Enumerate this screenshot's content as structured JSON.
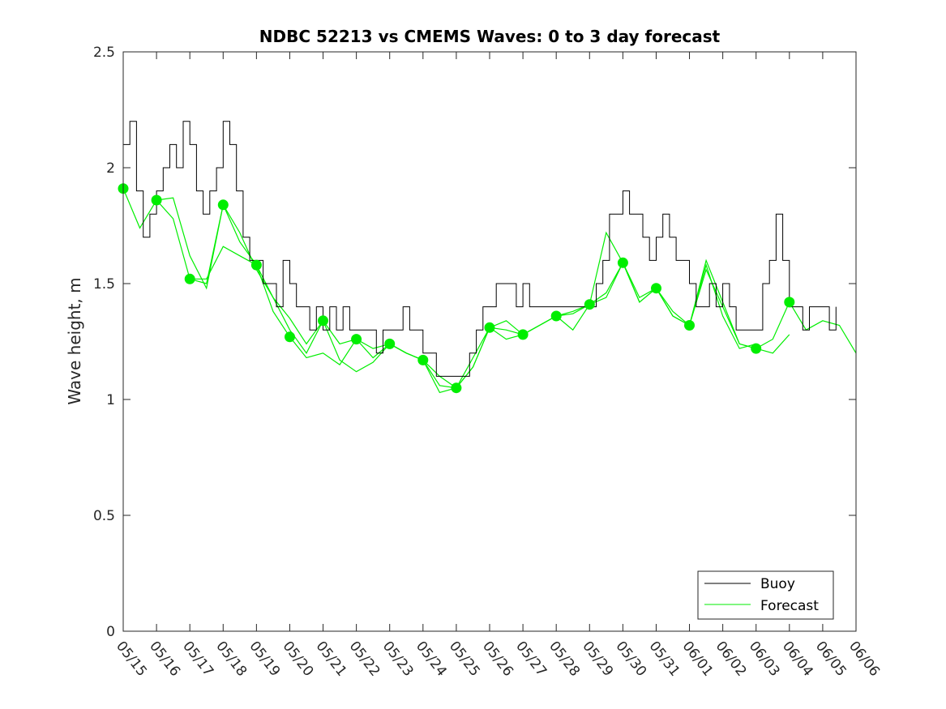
{
  "chart_data": {
    "type": "line",
    "title": "NDBC 52213 vs CMEMS Waves: 0 to 3 day forecast",
    "xlabel": "",
    "ylabel": "Wave height, m",
    "x_range_days": [
      0,
      22
    ],
    "ylim": [
      0,
      2.5
    ],
    "y_ticks": [
      0,
      0.5,
      1,
      1.5,
      2,
      2.5
    ],
    "y_tick_labels": [
      "0",
      "0.5",
      "1",
      "1.5",
      "2",
      "2.5"
    ],
    "x_ticks": [
      0,
      1,
      2,
      3,
      4,
      5,
      6,
      7,
      8,
      9,
      10,
      11,
      12,
      13,
      14,
      15,
      16,
      17,
      18,
      19,
      20,
      21,
      22
    ],
    "x_tick_labels": [
      "05/15",
      "05/16",
      "05/17",
      "05/18",
      "05/19",
      "05/20",
      "05/21",
      "05/22",
      "05/23",
      "05/24",
      "05/25",
      "05/26",
      "05/27",
      "05/28",
      "05/29",
      "05/30",
      "05/31",
      "06/01",
      "06/02",
      "06/03",
      "06/04",
      "06/05",
      "06/06"
    ],
    "grid": false,
    "legend": {
      "position": "bottom-right",
      "entries": [
        "Buoy",
        "Forecast"
      ]
    },
    "colors": {
      "buoy": "#000000",
      "forecast": "#00ee00"
    },
    "buoy": {
      "name": "Buoy",
      "x": [
        0,
        0.2,
        0.4,
        0.6,
        0.8,
        1.0,
        1.2,
        1.4,
        1.6,
        1.8,
        2.0,
        2.2,
        2.4,
        2.6,
        2.8,
        3.0,
        3.2,
        3.4,
        3.6,
        3.8,
        4.0,
        4.2,
        4.4,
        4.6,
        4.8,
        5.0,
        5.2,
        5.4,
        5.6,
        5.8,
        6.0,
        6.2,
        6.4,
        6.6,
        6.8,
        7.0,
        7.2,
        7.4,
        7.6,
        7.8,
        8.0,
        8.2,
        8.4,
        8.6,
        8.8,
        9.0,
        9.2,
        9.4,
        9.6,
        9.8,
        10.0,
        10.2,
        10.4,
        10.6,
        10.8,
        11.0,
        11.2,
        11.4,
        11.6,
        11.8,
        12.0,
        12.2,
        12.4,
        12.6,
        12.8,
        13.0,
        13.2,
        13.4,
        13.6,
        13.8,
        14.0,
        14.2,
        14.4,
        14.6,
        14.8,
        15.0,
        15.2,
        15.4,
        15.6,
        15.8,
        16.0,
        16.2,
        16.4,
        16.6,
        16.8,
        17.0,
        17.2,
        17.4,
        17.6,
        17.8,
        18.0,
        18.2,
        18.4,
        18.6,
        18.8,
        19.0,
        19.2,
        19.4,
        19.6,
        19.8,
        20.0,
        20.2,
        20.4,
        20.6,
        20.8,
        21.0,
        21.2,
        21.4
      ],
      "y": [
        2.1,
        2.2,
        1.9,
        1.7,
        1.8,
        1.9,
        2.0,
        2.1,
        2.0,
        2.2,
        2.1,
        1.9,
        1.8,
        1.9,
        2.0,
        2.2,
        2.1,
        1.9,
        1.7,
        1.6,
        1.6,
        1.5,
        1.5,
        1.4,
        1.6,
        1.5,
        1.4,
        1.4,
        1.3,
        1.4,
        1.3,
        1.4,
        1.3,
        1.4,
        1.3,
        1.3,
        1.3,
        1.3,
        1.2,
        1.3,
        1.3,
        1.3,
        1.4,
        1.3,
        1.3,
        1.2,
        1.2,
        1.1,
        1.1,
        1.1,
        1.1,
        1.1,
        1.2,
        1.3,
        1.4,
        1.4,
        1.5,
        1.5,
        1.5,
        1.4,
        1.5,
        1.4,
        1.4,
        1.4,
        1.4,
        1.4,
        1.4,
        1.4,
        1.4,
        1.4,
        1.4,
        1.5,
        1.6,
        1.8,
        1.8,
        1.9,
        1.8,
        1.8,
        1.7,
        1.6,
        1.7,
        1.8,
        1.7,
        1.6,
        1.6,
        1.5,
        1.4,
        1.4,
        1.5,
        1.4,
        1.5,
        1.4,
        1.3,
        1.3,
        1.3,
        1.3,
        1.5,
        1.6,
        1.8,
        1.6,
        1.4,
        1.4,
        1.3,
        1.4,
        1.4,
        1.4,
        1.3,
        1.4
      ]
    },
    "forecast": {
      "name": "Forecast",
      "series": [
        {
          "x": [
            0,
            0.5,
            1,
            1.5,
            2,
            2.5,
            3
          ],
          "y": [
            1.91,
            1.74,
            1.86,
            1.78,
            1.52,
            1.5,
            1.84
          ]
        },
        {
          "x": [
            1,
            1.5,
            2,
            2.5,
            3,
            3.5,
            4
          ],
          "y": [
            1.86,
            1.87,
            1.62,
            1.48,
            1.84,
            1.68,
            1.58
          ]
        },
        {
          "x": [
            2,
            2.5,
            3,
            3.5,
            4,
            4.5,
            5
          ],
          "y": [
            1.52,
            1.52,
            1.66,
            1.62,
            1.58,
            1.38,
            1.27
          ]
        },
        {
          "x": [
            3,
            3.5,
            4,
            4.5,
            5,
            5.5,
            6
          ],
          "y": [
            1.84,
            1.72,
            1.56,
            1.44,
            1.35,
            1.24,
            1.34
          ]
        },
        {
          "x": [
            4,
            4.5,
            5,
            5.5,
            6,
            6.5,
            7
          ],
          "y": [
            1.58,
            1.44,
            1.3,
            1.2,
            1.34,
            1.24,
            1.26
          ]
        },
        {
          "x": [
            5,
            5.5,
            6,
            6.5,
            7,
            7.5,
            8
          ],
          "y": [
            1.27,
            1.18,
            1.2,
            1.15,
            1.26,
            1.22,
            1.24
          ]
        },
        {
          "x": [
            6,
            6.5,
            7,
            7.5,
            8,
            8.5,
            9
          ],
          "y": [
            1.34,
            1.17,
            1.12,
            1.16,
            1.24,
            1.2,
            1.17
          ]
        },
        {
          "x": [
            7,
            7.5,
            8,
            8.5,
            9,
            9.5,
            10
          ],
          "y": [
            1.26,
            1.18,
            1.24,
            1.2,
            1.17,
            1.1,
            1.05
          ]
        },
        {
          "x": [
            8,
            8.5,
            9,
            9.5,
            10,
            10.5,
            11
          ],
          "y": [
            1.24,
            1.2,
            1.17,
            1.06,
            1.05,
            1.14,
            1.31
          ]
        },
        {
          "x": [
            9,
            9.5,
            10,
            10.5,
            11,
            11.5,
            12
          ],
          "y": [
            1.17,
            1.03,
            1.05,
            1.18,
            1.31,
            1.3,
            1.28
          ]
        },
        {
          "x": [
            10,
            10.5,
            11,
            11.5,
            12,
            12.5,
            13
          ],
          "y": [
            1.05,
            1.14,
            1.31,
            1.26,
            1.28,
            1.32,
            1.36
          ]
        },
        {
          "x": [
            11,
            11.5,
            12,
            12.5,
            13,
            13.5,
            14
          ],
          "y": [
            1.31,
            1.34,
            1.28,
            1.32,
            1.36,
            1.37,
            1.41
          ]
        },
        {
          "x": [
            12,
            12.5,
            13,
            13.5,
            14,
            14.5,
            15
          ],
          "y": [
            1.28,
            1.32,
            1.36,
            1.3,
            1.41,
            1.44,
            1.59
          ]
        },
        {
          "x": [
            13,
            13.5,
            14,
            14.5,
            15,
            15.5,
            16
          ],
          "y": [
            1.36,
            1.38,
            1.41,
            1.72,
            1.59,
            1.42,
            1.48
          ]
        },
        {
          "x": [
            14,
            14.5,
            15,
            15.5,
            16,
            16.5,
            17
          ],
          "y": [
            1.41,
            1.46,
            1.59,
            1.44,
            1.48,
            1.36,
            1.32
          ]
        },
        {
          "x": [
            15,
            15.5,
            16,
            16.5,
            17,
            17.5,
            18
          ],
          "y": [
            1.59,
            1.42,
            1.48,
            1.36,
            1.32,
            1.6,
            1.42
          ]
        },
        {
          "x": [
            16,
            16.5,
            17,
            17.5,
            18,
            18.5,
            19
          ],
          "y": [
            1.48,
            1.38,
            1.32,
            1.58,
            1.36,
            1.22,
            1.24
          ]
        },
        {
          "x": [
            17,
            17.5,
            18,
            18.5,
            19,
            19.5,
            20
          ],
          "y": [
            1.32,
            1.56,
            1.4,
            1.24,
            1.22,
            1.26,
            1.42
          ]
        },
        {
          "x": [
            18,
            18.5,
            19,
            19.5,
            20
          ],
          "y": [
            1.42,
            1.24,
            1.22,
            1.2,
            1.28
          ]
        },
        {
          "x": [
            20,
            20.5,
            21,
            21.5,
            22
          ],
          "y": [
            1.42,
            1.3,
            1.34,
            1.32,
            1.2
          ]
        }
      ],
      "markers": {
        "x": [
          0,
          1,
          2,
          3,
          4,
          5,
          6,
          7,
          8,
          9,
          10,
          11,
          12,
          13,
          14,
          15,
          16,
          17,
          19,
          20
        ],
        "y": [
          1.91,
          1.86,
          1.52,
          1.84,
          1.58,
          1.27,
          1.34,
          1.26,
          1.24,
          1.17,
          1.05,
          1.31,
          1.28,
          1.36,
          1.41,
          1.59,
          1.48,
          1.32,
          1.22,
          1.42
        ]
      }
    }
  }
}
